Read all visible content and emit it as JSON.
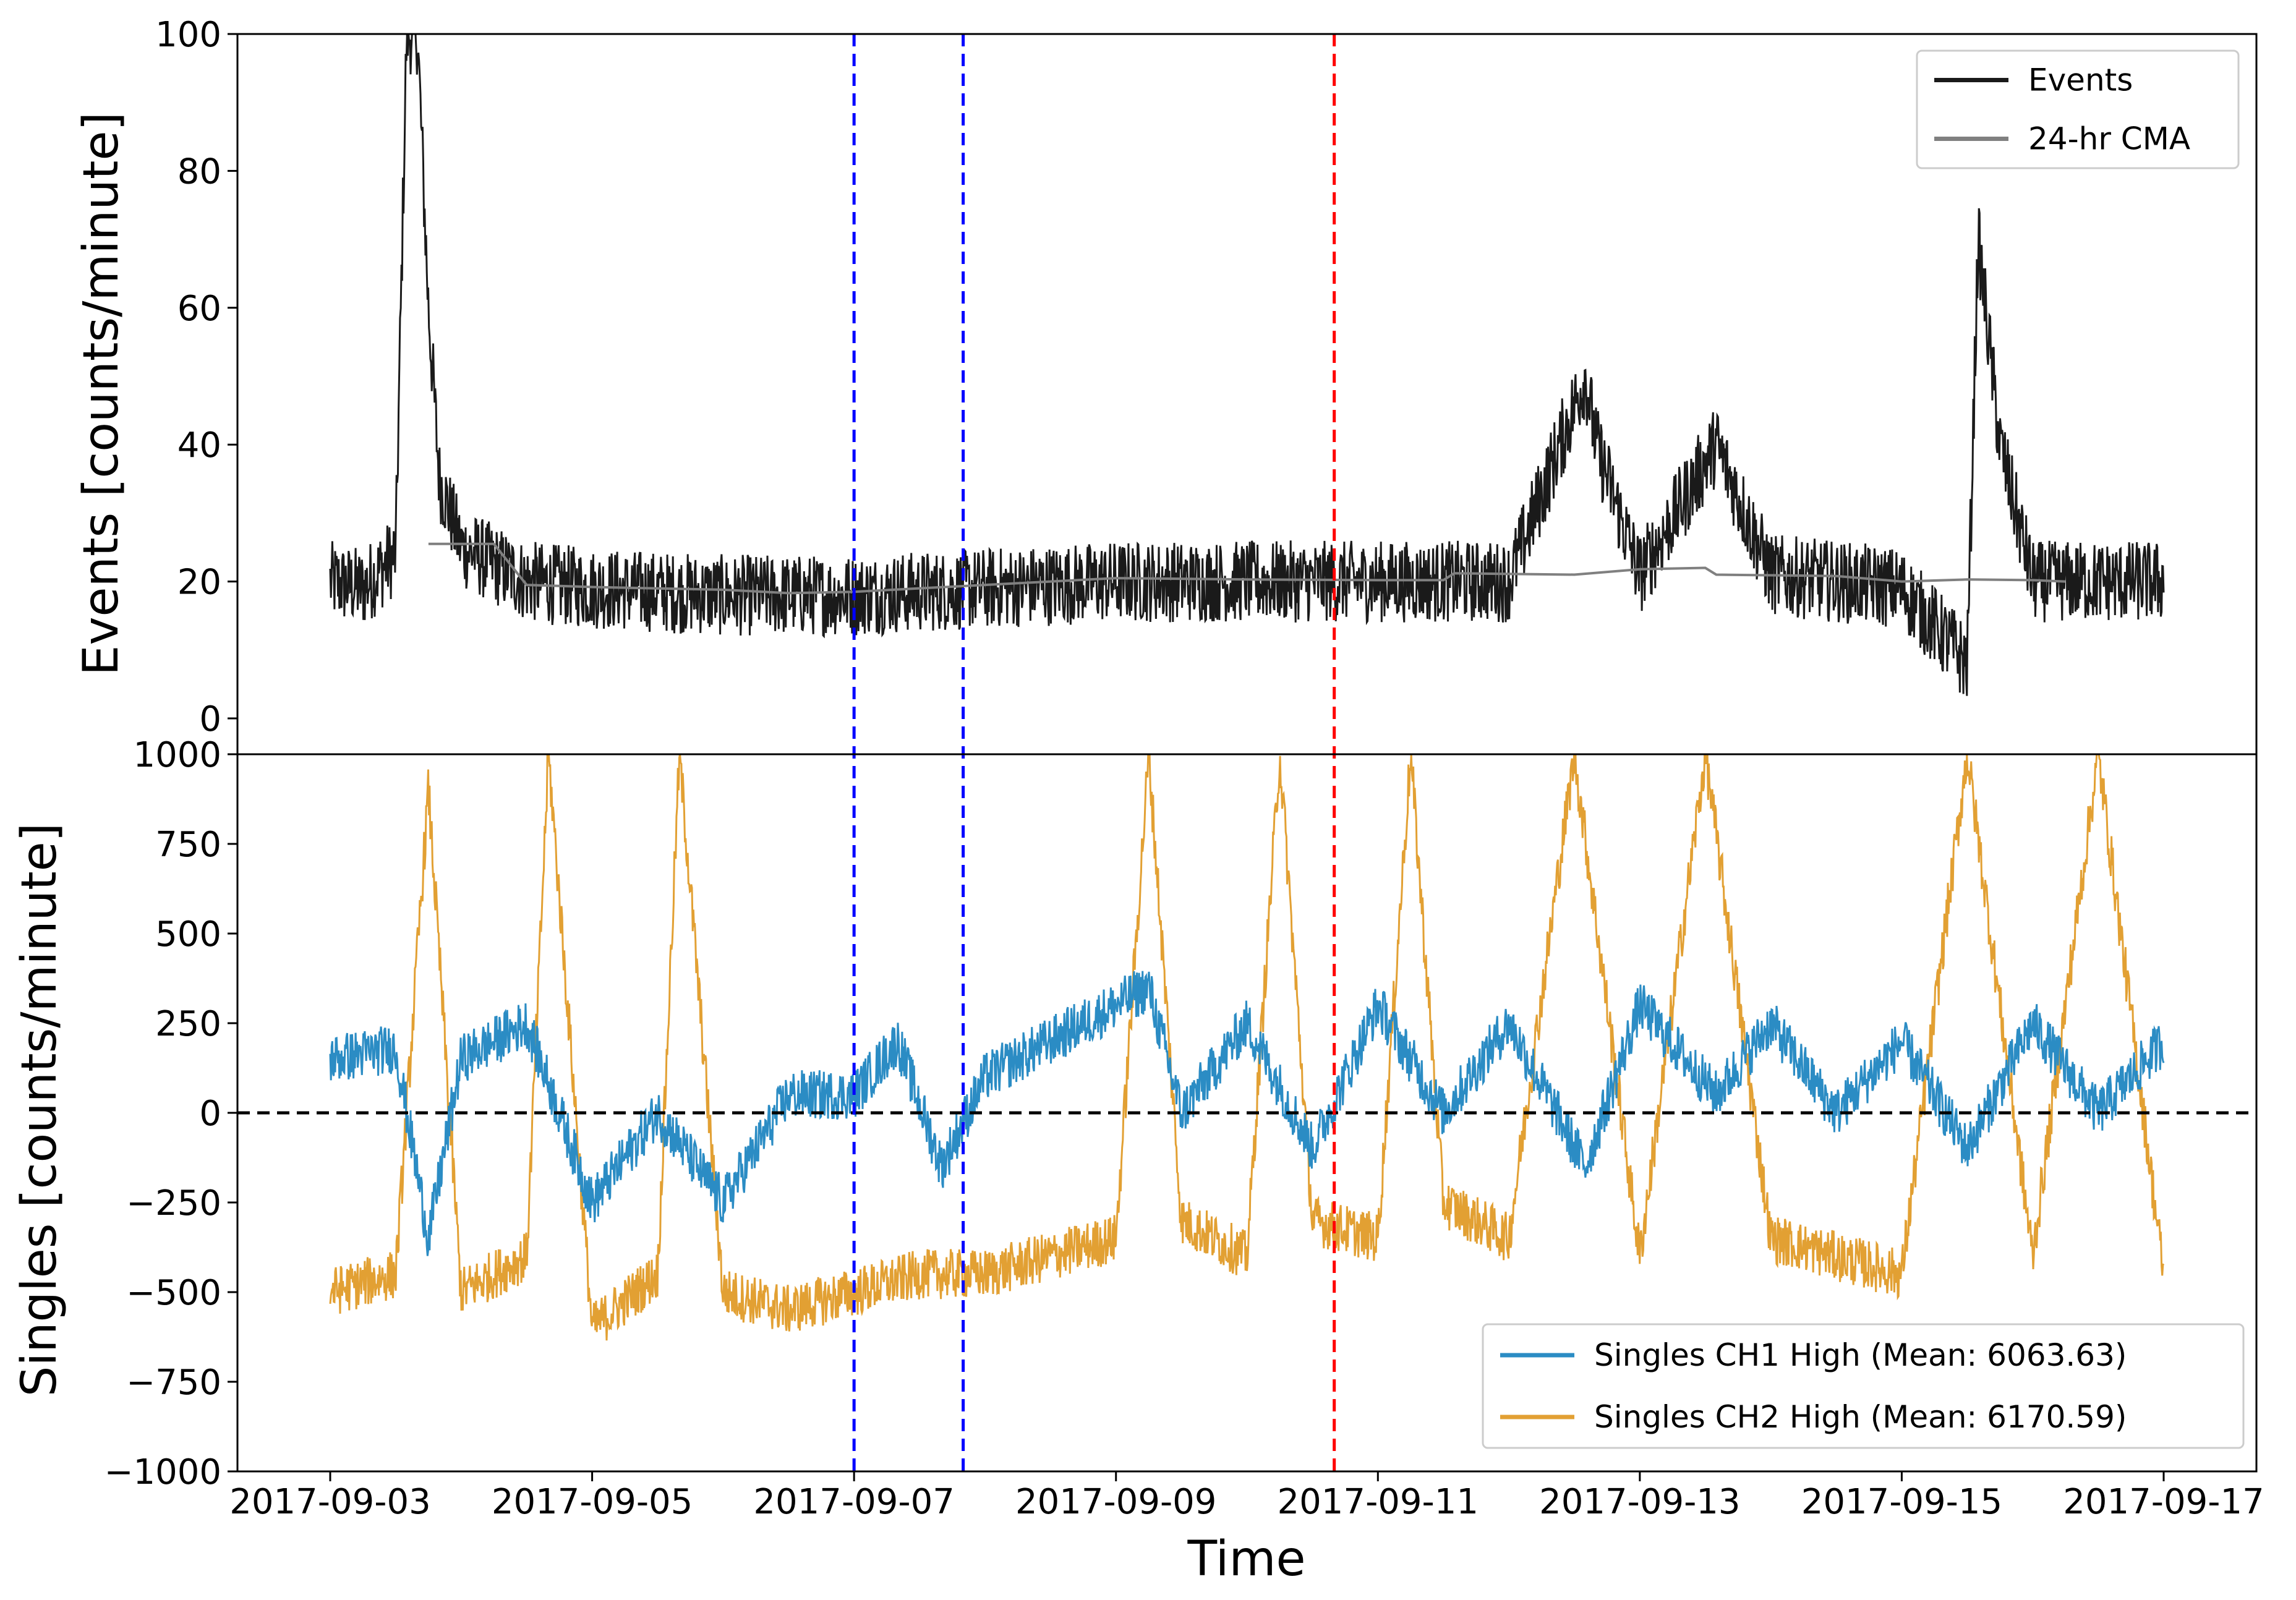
{
  "chart_data": [
    {
      "type": "line",
      "ylabel": "Events [counts/minute]",
      "ylim": [
        0,
        100
      ],
      "yticks": [
        "0",
        "20",
        "40",
        "60",
        "80",
        "100"
      ],
      "legend_position": "upper right",
      "series": [
        {
          "name": "Events",
          "color": "#1a1a1a",
          "baseline": 19,
          "noise": 6,
          "points": [
            [
              "2017-09-03 00:00",
              20
            ],
            [
              "2017-09-03 06:00",
              19
            ],
            [
              "2017-09-03 12:00",
              24
            ],
            [
              "2017-09-03 14:00",
              100
            ],
            [
              "2017-09-03 16:00",
              100
            ],
            [
              "2017-09-03 18:00",
              60
            ],
            [
              "2017-09-03 20:00",
              35
            ],
            [
              "2017-09-04 00:00",
              25
            ],
            [
              "2017-09-04 12:00",
              20
            ],
            [
              "2017-09-05 00:00",
              19
            ],
            [
              "2017-09-06 00:00",
              18
            ],
            [
              "2017-09-07 00:00",
              18
            ],
            [
              "2017-09-08 00:00",
              19
            ],
            [
              "2017-09-09 00:00",
              20
            ],
            [
              "2017-09-10 00:00",
              20
            ],
            [
              "2017-09-11 00:00",
              20
            ],
            [
              "2017-09-12 00:00",
              20
            ],
            [
              "2017-09-12 14:00",
              50
            ],
            [
              "2017-09-12 16:00",
              40
            ],
            [
              "2017-09-13 00:00",
              21
            ],
            [
              "2017-09-13 14:00",
              40
            ],
            [
              "2017-09-14 00:00",
              21
            ],
            [
              "2017-09-15 00:00",
              19
            ],
            [
              "2017-09-15 12:00",
              8
            ],
            [
              "2017-09-15 14:00",
              70
            ],
            [
              "2017-09-15 18:00",
              40
            ],
            [
              "2017-09-16 00:00",
              20
            ],
            [
              "2017-09-17 00:00",
              20
            ]
          ]
        },
        {
          "name": "24-hr CMA",
          "color": "#808080",
          "points": [
            [
              "2017-09-03 18:00",
              25.5
            ],
            [
              "2017-09-04 06:00",
              25.5
            ],
            [
              "2017-09-04 12:00",
              19.5
            ],
            [
              "2017-09-05 00:00",
              19.2
            ],
            [
              "2017-09-06 00:00",
              18.8
            ],
            [
              "2017-09-06 12:00",
              18.3
            ],
            [
              "2017-09-07 00:00",
              18.5
            ],
            [
              "2017-09-08 00:00",
              19.5
            ],
            [
              "2017-09-09 00:00",
              20.5
            ],
            [
              "2017-09-10 00:00",
              20.3
            ],
            [
              "2017-09-11 00:00",
              20.2
            ],
            [
              "2017-09-11 12:00",
              20.2
            ],
            [
              "2017-09-11 14:00",
              21.2
            ],
            [
              "2017-09-12 12:00",
              21.0
            ],
            [
              "2017-09-13 00:00",
              21.8
            ],
            [
              "2017-09-13 12:00",
              22.0
            ],
            [
              "2017-09-13 14:00",
              21.0
            ],
            [
              "2017-09-14 12:00",
              20.8
            ],
            [
              "2017-09-15 00:00",
              20.0
            ],
            [
              "2017-09-15 12:00",
              20.3
            ],
            [
              "2017-09-16 00:00",
              20.2
            ],
            [
              "2017-09-16 06:00",
              20.0
            ]
          ]
        }
      ],
      "vlines": [
        {
          "x": "2017-09-07 00:00",
          "color": "#0000ff",
          "style": "dashed"
        },
        {
          "x": "2017-09-07 20:00",
          "color": "#0000ff",
          "style": "dashed"
        },
        {
          "x": "2017-09-10 16:00",
          "color": "#ff0000",
          "style": "dashed"
        }
      ]
    },
    {
      "type": "line",
      "xlabel": "Time",
      "ylabel": "Singles [counts/minute]",
      "ylim": [
        -1000,
        1000
      ],
      "yticks": [
        "−1000",
        "−750",
        "−500",
        "−250",
        "0",
        "250",
        "500",
        "750",
        "1000"
      ],
      "xlim": [
        "2017-09-02 07:00",
        "2017-09-17 17:00"
      ],
      "xticks": [
        "2017-09-03",
        "2017-09-05",
        "2017-09-07",
        "2017-09-09",
        "2017-09-11",
        "2017-09-13",
        "2017-09-15",
        "2017-09-17"
      ],
      "legend_position": "lower right",
      "hline": {
        "y": 0,
        "color": "#000000",
        "style": "dashed"
      },
      "series": [
        {
          "name": "Singles CH1 High (Mean: 6063.63)",
          "color": "#2b8cc4",
          "noise": 70,
          "points": [
            [
              "2017-09-03 00:00",
              150
            ],
            [
              "2017-09-03 12:00",
              180
            ],
            [
              "2017-09-03 18:00",
              -350
            ],
            [
              "2017-09-04 00:00",
              150
            ],
            [
              "2017-09-04 12:00",
              250
            ],
            [
              "2017-09-05 00:00",
              -250
            ],
            [
              "2017-09-05 12:00",
              0
            ],
            [
              "2017-09-06 00:00",
              -250
            ],
            [
              "2017-09-06 12:00",
              50
            ],
            [
              "2017-09-07 00:00",
              50
            ],
            [
              "2017-09-07 08:00",
              200
            ],
            [
              "2017-09-07 16:00",
              -150
            ],
            [
              "2017-09-08 00:00",
              100
            ],
            [
              "2017-09-08 12:00",
              200
            ],
            [
              "2017-09-09 00:00",
              300
            ],
            [
              "2017-09-09 06:00",
              350
            ],
            [
              "2017-09-09 12:00",
              0
            ],
            [
              "2017-09-10 00:00",
              250
            ],
            [
              "2017-09-10 12:00",
              -100
            ],
            [
              "2017-09-11 00:00",
              300
            ],
            [
              "2017-09-11 12:00",
              0
            ],
            [
              "2017-09-12 00:00",
              250
            ],
            [
              "2017-09-12 14:00",
              -150
            ],
            [
              "2017-09-13 00:00",
              300
            ],
            [
              "2017-09-13 14:00",
              50
            ],
            [
              "2017-09-14 00:00",
              250
            ],
            [
              "2017-09-14 12:00",
              0
            ],
            [
              "2017-09-15 00:00",
              200
            ],
            [
              "2017-09-15 12:00",
              -100
            ],
            [
              "2017-09-16 00:00",
              250
            ],
            [
              "2017-09-16 12:00",
              0
            ],
            [
              "2017-09-17 00:00",
              200
            ]
          ]
        },
        {
          "name": "Singles CH2 High (Mean: 6170.59)",
          "color": "#e2a033",
          "noise": 70,
          "points": [
            [
              "2017-09-03 00:00",
              -500
            ],
            [
              "2017-09-03 12:00",
              -450
            ],
            [
              "2017-09-03 18:00",
              900
            ],
            [
              "2017-09-04 00:00",
              -500
            ],
            [
              "2017-09-04 12:00",
              -400
            ],
            [
              "2017-09-04 16:00",
              1000
            ],
            [
              "2017-09-05 00:00",
              -600
            ],
            [
              "2017-09-05 12:00",
              -450
            ],
            [
              "2017-09-05 16:00",
              1000
            ],
            [
              "2017-09-06 00:00",
              -500
            ],
            [
              "2017-09-06 12:00",
              -550
            ],
            [
              "2017-09-07 00:00",
              -500
            ],
            [
              "2017-09-07 12:00",
              -450
            ],
            [
              "2017-09-08 00:00",
              -450
            ],
            [
              "2017-09-08 12:00",
              -400
            ],
            [
              "2017-09-09 00:00",
              -350
            ],
            [
              "2017-09-09 06:00",
              1000
            ],
            [
              "2017-09-09 12:00",
              -300
            ],
            [
              "2017-09-10 00:00",
              -400
            ],
            [
              "2017-09-10 06:00",
              1000
            ],
            [
              "2017-09-10 12:00",
              -300
            ],
            [
              "2017-09-11 00:00",
              -350
            ],
            [
              "2017-09-11 06:00",
              1000
            ],
            [
              "2017-09-11 12:00",
              -250
            ],
            [
              "2017-09-12 00:00",
              -350
            ],
            [
              "2017-09-12 12:00",
              1000
            ],
            [
              "2017-09-13 00:00",
              -400
            ],
            [
              "2017-09-13 12:00",
              1000
            ],
            [
              "2017-09-14 00:00",
              -350
            ],
            [
              "2017-09-14 12:00",
              -400
            ],
            [
              "2017-09-15 00:00",
              -450
            ],
            [
              "2017-09-15 12:00",
              1000
            ],
            [
              "2017-09-16 00:00",
              -400
            ],
            [
              "2017-09-16 12:00",
              1000
            ],
            [
              "2017-09-17 00:00",
              -450
            ]
          ]
        }
      ],
      "vlines": [
        {
          "x": "2017-09-07 00:00",
          "color": "#0000ff",
          "style": "dashed"
        },
        {
          "x": "2017-09-07 20:00",
          "color": "#0000ff",
          "style": "dashed"
        },
        {
          "x": "2017-09-10 16:00",
          "color": "#ff0000",
          "style": "dashed"
        }
      ]
    }
  ]
}
